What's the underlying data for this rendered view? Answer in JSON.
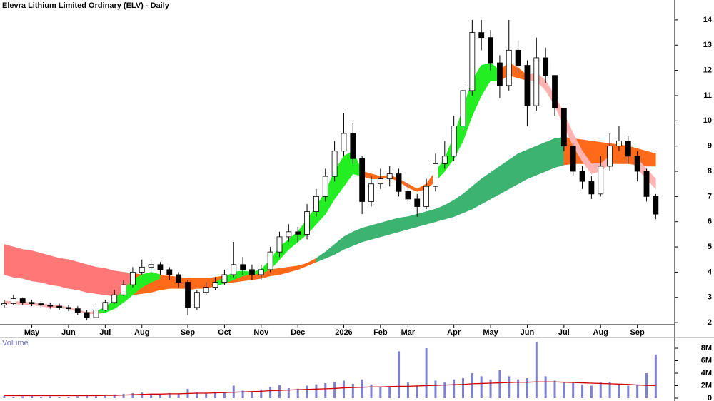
{
  "chart_data": [
    {
      "type": "candlestick",
      "title": "Elevra Lithium Limited Ordinary (ELV) - Daily",
      "categories": [
        null,
        null,
        null,
        "May",
        null,
        null,
        null,
        "Jun",
        null,
        null,
        null,
        "Jul",
        null,
        null,
        null,
        "Aug",
        null,
        null,
        null,
        null,
        "Sep",
        null,
        null,
        null,
        "Oct",
        null,
        null,
        null,
        "Nov",
        null,
        null,
        null,
        "Dec",
        null,
        null,
        null,
        null,
        "2026",
        null,
        null,
        null,
        "Feb",
        null,
        null,
        "Mar",
        null,
        null,
        null,
        null,
        "Apr",
        null,
        null,
        null,
        "May",
        null,
        null,
        null,
        "Jun",
        null,
        null,
        null,
        "Jul",
        null,
        null,
        null,
        "Aug",
        null,
        null,
        null,
        "Sep",
        null,
        null
      ],
      "open": [
        2.7,
        2.75,
        2.95,
        2.8,
        2.75,
        2.7,
        2.65,
        2.6,
        2.55,
        2.4,
        2.2,
        2.5,
        2.8,
        3.1,
        3.5,
        4.0,
        4.2,
        4.3,
        4.1,
        3.9,
        3.6,
        2.6,
        3.2,
        3.4,
        3.6,
        3.9,
        4.3,
        4.1,
        3.9,
        4.1,
        4.8,
        5.4,
        5.6,
        5.5,
        6.4,
        7.0,
        7.8,
        8.8,
        9.5,
        8.5,
        6.8,
        7.5,
        7.7,
        7.9,
        7.2,
        6.9,
        6.6,
        7.4,
        8.3,
        8.6,
        9.8,
        11.2,
        13.5,
        13.3,
        12.3,
        11.4,
        12.8,
        12.2,
        10.6,
        12.5,
        11.8,
        10.5,
        9.0,
        8.0,
        7.6,
        7.1,
        8.2,
        9.0,
        9.2,
        8.6,
        8.0,
        7.0
      ],
      "high": [
        2.9,
        3.1,
        3.0,
        2.9,
        2.85,
        2.8,
        2.75,
        2.7,
        2.65,
        2.5,
        2.6,
        2.9,
        3.3,
        3.7,
        4.2,
        4.5,
        4.5,
        4.4,
        4.2,
        4.0,
        3.7,
        3.3,
        3.6,
        3.8,
        4.1,
        5.2,
        4.6,
        4.3,
        4.3,
        5.0,
        5.6,
        5.9,
        5.8,
        6.7,
        7.3,
        8.1,
        9.2,
        10.3,
        9.9,
        8.6,
        7.8,
        8.1,
        8.2,
        8.1,
        7.5,
        7.1,
        7.7,
        8.7,
        9.2,
        10.2,
        11.6,
        14.0,
        14.0,
        13.6,
        12.6,
        14.0,
        13.2,
        12.4,
        13.3,
        12.9,
        11.8,
        10.5,
        9.1,
        8.2,
        7.8,
        8.6,
        9.5,
        9.8,
        9.4,
        8.8,
        8.1,
        7.1
      ],
      "low": [
        2.6,
        2.7,
        2.7,
        2.65,
        2.6,
        2.55,
        2.5,
        2.45,
        2.3,
        2.1,
        2.15,
        2.45,
        2.75,
        3.05,
        3.4,
        3.9,
        4.0,
        3.9,
        3.7,
        3.4,
        2.3,
        2.5,
        3.1,
        3.3,
        3.5,
        3.8,
        3.9,
        3.7,
        3.7,
        4.0,
        4.6,
        5.2,
        5.2,
        5.3,
        6.2,
        6.8,
        7.6,
        8.6,
        8.3,
        6.3,
        6.6,
        7.3,
        7.4,
        7.0,
        6.7,
        6.2,
        6.5,
        7.2,
        8.1,
        8.4,
        9.6,
        11.0,
        12.8,
        12.0,
        10.9,
        11.2,
        11.9,
        9.8,
        10.4,
        11.5,
        10.2,
        8.8,
        7.8,
        7.3,
        6.9,
        7.0,
        8.0,
        8.8,
        8.3,
        7.6,
        6.8,
        6.1
      ],
      "close": [
        2.75,
        2.95,
        2.8,
        2.75,
        2.7,
        2.65,
        2.6,
        2.55,
        2.4,
        2.2,
        2.5,
        2.8,
        3.1,
        3.5,
        4.0,
        4.2,
        4.3,
        4.1,
        3.9,
        3.6,
        2.6,
        3.2,
        3.4,
        3.6,
        3.9,
        4.3,
        4.1,
        3.9,
        4.1,
        4.8,
        5.4,
        5.6,
        5.5,
        6.4,
        7.0,
        7.8,
        8.8,
        9.5,
        8.5,
        6.8,
        7.5,
        7.7,
        7.9,
        7.2,
        6.9,
        6.6,
        7.4,
        8.3,
        8.6,
        9.8,
        11.2,
        13.5,
        13.3,
        12.3,
        11.4,
        12.8,
        12.2,
        10.6,
        12.5,
        11.8,
        10.5,
        9.0,
        8.0,
        7.6,
        7.1,
        8.2,
        9.0,
        9.2,
        8.6,
        8.0,
        7.0,
        6.3
      ],
      "bands": [
        {
          "upper": [
            5.1,
            5.0,
            4.9,
            4.85,
            4.75,
            4.65,
            4.55,
            4.5,
            4.4,
            4.3,
            4.2,
            4.15,
            4.05,
            4.0,
            3.95,
            3.9,
            3.9,
            3.85,
            3.85,
            3.8,
            3.75,
            3.75,
            3.75,
            3.8,
            3.85,
            3.9,
            3.95,
            4.0,
            4.05,
            4.1,
            4.15,
            4.2,
            4.25,
            4.35,
            4.55,
            4.8,
            5.1,
            5.4,
            5.6,
            5.75,
            5.85,
            5.95,
            6.05,
            6.15,
            6.2,
            6.3,
            6.4,
            6.5,
            6.65,
            6.85,
            7.1,
            7.4,
            7.7,
            7.95,
            8.2,
            8.45,
            8.7,
            8.85,
            9.0,
            9.15,
            9.3,
            9.35,
            9.3,
            9.25,
            9.2,
            9.15,
            9.1,
            9.05,
            9.0,
            8.9,
            8.8,
            8.7
          ],
          "lower": [
            3.9,
            3.8,
            3.75,
            3.65,
            3.6,
            3.5,
            3.45,
            3.35,
            3.3,
            3.2,
            3.15,
            3.1,
            3.05,
            3.0,
            3.1,
            3.15,
            3.2,
            3.3,
            3.35,
            3.35,
            3.35,
            3.4,
            3.45,
            3.5,
            3.55,
            3.6,
            3.65,
            3.7,
            3.75,
            3.85,
            3.9,
            4.0,
            4.1,
            4.25,
            4.4,
            4.55,
            4.7,
            4.9,
            5.05,
            5.2,
            5.3,
            5.4,
            5.5,
            5.6,
            5.7,
            5.8,
            5.9,
            6.0,
            6.1,
            6.2,
            6.35,
            6.5,
            6.7,
            6.9,
            7.1,
            7.3,
            7.5,
            7.7,
            7.85,
            8.0,
            8.15,
            8.25,
            8.3,
            8.3,
            8.3,
            8.3,
            8.3,
            8.3,
            8.3,
            8.25,
            8.2,
            8.2
          ],
          "colors": [
            "#f77",
            "#f77",
            "#f77",
            "#f77",
            "#f77",
            "#f77",
            "#f77",
            "#f77",
            "#f77",
            "#f77",
            "#f77",
            "#f77",
            "#f77",
            "#f77",
            "#ff6a1a",
            "#ff6a1a",
            "#ff6a1a",
            "#ff6a1a",
            "#ff6a1a",
            "#ff6a1a",
            "#ff6a1a",
            "#ff6a1a",
            "#ff6a1a",
            "#ff6a1a",
            "#ff6a1a",
            "#ff6a1a",
            "#ff6a1a",
            "#ff6a1a",
            "#ff6a1a",
            "#ff6a1a",
            "#ff6a1a",
            "#ff6a1a",
            "#ff6a1a",
            "#ff6a1a",
            "#3cb371",
            "#3cb371",
            "#3cb371",
            "#3cb371",
            "#3cb371",
            "#3cb371",
            "#3cb371",
            "#3cb371",
            "#3cb371",
            "#3cb371",
            "#3cb371",
            "#3cb371",
            "#3cb371",
            "#3cb371",
            "#3cb371",
            "#3cb371",
            "#3cb371",
            "#3cb371",
            "#3cb371",
            "#3cb371",
            "#3cb371",
            "#3cb371",
            "#3cb371",
            "#3cb371",
            "#3cb371",
            "#3cb371",
            "#3cb371",
            "#ff6a1a",
            "#ff6a1a",
            "#ff6a1a",
            "#ff6a1a",
            "#ff6a1a",
            "#ff6a1a",
            "#ff6a1a",
            "#ff6a1a",
            "#ff6a1a",
            "#ff6a1a"
          ]
        },
        {
          "upper": [
            2.85,
            2.85,
            2.82,
            2.8,
            2.75,
            2.7,
            2.68,
            2.6,
            2.52,
            2.4,
            2.45,
            2.6,
            2.9,
            3.3,
            3.7,
            3.9,
            4.0,
            3.9,
            3.8,
            3.7,
            3.4,
            3.4,
            3.5,
            3.6,
            3.8,
            4.0,
            4.05,
            4.0,
            4.1,
            4.5,
            5.0,
            5.3,
            5.6,
            6.1,
            6.6,
            7.2,
            8.0,
            8.6,
            8.8,
            8.0,
            7.9,
            7.8,
            7.85,
            7.7,
            7.5,
            7.3,
            7.5,
            8.0,
            8.5,
            9.4,
            10.5,
            11.6,
            12.2,
            12.3,
            12.0,
            12.3,
            12.1,
            11.8,
            11.9,
            11.6,
            11.0,
            10.3,
            9.5,
            8.8,
            8.3,
            8.3,
            8.6,
            8.8,
            8.8,
            8.5,
            8.1,
            7.7
          ],
          "lower": [
            2.75,
            2.75,
            2.72,
            2.7,
            2.65,
            2.6,
            2.58,
            2.55,
            2.45,
            2.35,
            2.35,
            2.4,
            2.55,
            2.8,
            3.1,
            3.4,
            3.6,
            3.75,
            3.65,
            3.5,
            3.3,
            3.35,
            3.35,
            3.45,
            3.55,
            3.7,
            3.85,
            3.9,
            3.95,
            4.1,
            4.5,
            4.9,
            5.2,
            5.5,
            5.9,
            6.3,
            6.9,
            7.4,
            7.9,
            7.8,
            7.7,
            7.7,
            7.75,
            7.6,
            7.35,
            7.2,
            7.3,
            7.6,
            8.0,
            8.5,
            9.2,
            10.2,
            11.0,
            11.6,
            11.6,
            11.8,
            11.7,
            11.6,
            11.6,
            11.2,
            10.6,
            9.8,
            9.0,
            8.4,
            7.9,
            8.0,
            8.3,
            8.5,
            8.6,
            8.1,
            7.7,
            7.3
          ],
          "colors": [
            "#ffb3b3",
            "#ffb3b3",
            "#ffb3b3",
            "#ffb3b3",
            "#ffb3b3",
            "#ffb3b3",
            "#ffb3b3",
            "#ffb3b3",
            "#ffb3b3",
            "#ffb3b3",
            "#22ee22",
            "#22ee22",
            "#22ee22",
            "#22ee22",
            "#22ee22",
            "#22ee22",
            "#22ee22",
            "#ff6a1a",
            "#ff6a1a",
            "#ff6a1a",
            "#ff6a1a",
            "#ff6a1a",
            "#ff6a1a",
            "#22ee22",
            "#22ee22",
            "#22ee22",
            "#22ee22",
            "#22ee22",
            "#22ee22",
            "#22ee22",
            "#22ee22",
            "#22ee22",
            "#22ee22",
            "#22ee22",
            "#22ee22",
            "#22ee22",
            "#22ee22",
            "#22ee22",
            "#22ee22",
            "#ff6a1a",
            "#ff6a1a",
            "#ff6a1a",
            "#ff6a1a",
            "#ff6a1a",
            "#ff6a1a",
            "#ff6a1a",
            "#ff6a1a",
            "#22ee22",
            "#22ee22",
            "#22ee22",
            "#22ee22",
            "#22ee22",
            "#22ee22",
            "#22ee22",
            "#ff6a1a",
            "#ff6a1a",
            "#ff6a1a",
            "#ffb3b3",
            "#ffb3b3",
            "#ffb3b3",
            "#ffb3b3",
            "#ffb3b3",
            "#ffb3b3",
            "#ffb3b3",
            "#ffb3b3",
            "#ffb3b3",
            "#ff6a1a",
            "#ff6a1a",
            "#ff6a1a",
            "#ffb3b3",
            "#ffb3b3"
          ]
        }
      ],
      "ylim": [
        1.72,
        14.79
      ],
      "yticks": [
        2,
        3,
        4,
        5,
        6,
        7,
        8,
        9,
        10,
        11,
        12,
        13,
        14
      ]
    },
    {
      "type": "bar",
      "title": "Volume",
      "color": "#8080d0",
      "values": [
        300000,
        200000,
        300000,
        500000,
        200000,
        300000,
        200000,
        200000,
        300000,
        400000,
        300000,
        500000,
        600000,
        700000,
        800000,
        900000,
        700000,
        600000,
        800000,
        700000,
        1500000,
        900000,
        800000,
        1000000,
        900000,
        2000000,
        1200000,
        1100000,
        1400000,
        1800000,
        2100000,
        1600000,
        1500000,
        2000000,
        2200000,
        2400000,
        2600000,
        2800000,
        2300000,
        3000000,
        2200000,
        1800000,
        1900000,
        7500000,
        2500000,
        2000000,
        8000000,
        2800000,
        2500000,
        3000000,
        3200000,
        4000000,
        3500000,
        3000000,
        4500000,
        3500000,
        3000000,
        3200000,
        9000000,
        3500000,
        2800000,
        2500000,
        2400000,
        2200000,
        2000000,
        2500000,
        2600000,
        2300000,
        2000000,
        2200000,
        4000000,
        7000000
      ],
      "average": {
        "color": "#d00000",
        "values": [
          400000,
          400000,
          400000,
          400000,
          400000,
          400000,
          400000,
          400000,
          400000,
          400000,
          400000,
          450000,
          450000,
          500000,
          550000,
          600000,
          650000,
          650000,
          700000,
          700000,
          750000,
          800000,
          800000,
          850000,
          900000,
          950000,
          1000000,
          1050000,
          1100000,
          1200000,
          1250000,
          1300000,
          1350000,
          1400000,
          1450000,
          1500000,
          1550000,
          1650000,
          1700000,
          1750000,
          1800000,
          1800000,
          1850000,
          1900000,
          1900000,
          1950000,
          2000000,
          2050000,
          2100000,
          2150000,
          2200000,
          2300000,
          2350000,
          2400000,
          2450000,
          2500000,
          2550000,
          2550000,
          2600000,
          2600000,
          2600000,
          2550000,
          2500000,
          2450000,
          2400000,
          2350000,
          2300000,
          2250000,
          2200000,
          2100000,
          2050000,
          2000000
        ]
      },
      "ylim": [
        0,
        9490000
      ],
      "yticks": [
        0,
        {
          "value": 2000000,
          "label": "2M"
        },
        {
          "value": 4000000,
          "label": "4M"
        },
        {
          "value": 6000000,
          "label": "6M"
        },
        {
          "value": 8000000,
          "label": "8M"
        }
      ]
    }
  ]
}
